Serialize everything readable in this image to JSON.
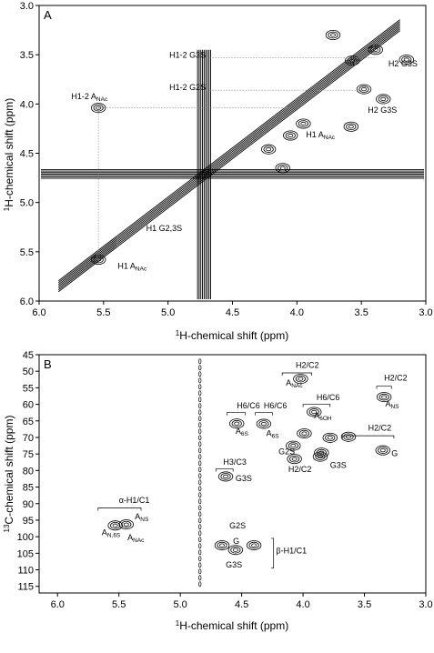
{
  "chart_data": [
    {
      "panel_label": "A",
      "type": "contour",
      "xlabel": "1H-chemical shift (ppm)",
      "xlabel_sup": "1",
      "xlabel_main": "H-chemical shift (ppm)",
      "ylabel_sup": "1",
      "ylabel_main": "H-chemical shift (ppm)",
      "xlim": [
        6.0,
        3.0
      ],
      "ylim": [
        3.0,
        6.0
      ],
      "x_ticks": [
        "6.0",
        "5.5",
        "5.0",
        "4.5",
        "4.0",
        "3.5",
        "3.0"
      ],
      "y_ticks": [
        "3.0",
        "3.5",
        "4.0",
        "4.5",
        "5.0",
        "5.5",
        "6.0"
      ],
      "x_tick_values": [
        6.0,
        5.5,
        5.0,
        4.5,
        4.0,
        3.5,
        3.0
      ],
      "y_tick_values": [
        3.0,
        3.5,
        4.0,
        4.5,
        5.0,
        5.5,
        6.0
      ],
      "annotations": [
        {
          "text": "H1-2 G3S",
          "x": 4.99,
          "y": 3.53
        },
        {
          "text": "H2 G3S",
          "x": 3.29,
          "y": 3.62
        },
        {
          "text": "H1-2 ANAc",
          "main": "H1-2 A",
          "sub": "NAc",
          "x": 5.75,
          "y": 3.95
        },
        {
          "text": "H1-2 G2S",
          "x": 4.99,
          "y": 3.86
        },
        {
          "text": "H2 G3S",
          "x": 3.45,
          "y": 4.09
        },
        {
          "text": "H1 ANAc",
          "main": "H1 A",
          "sub": "NAc",
          "x": 3.93,
          "y": 4.34
        },
        {
          "text": "H1 G2,3S",
          "x": 5.17,
          "y": 5.29
        },
        {
          "text": "H1 ANAc",
          "main": "H1 A",
          "sub": "NAc",
          "x": 5.39,
          "y": 5.67
        }
      ],
      "peaks": [
        {
          "x": 5.54,
          "y": 4.04
        },
        {
          "x": 5.54,
          "y": 5.58
        },
        {
          "x": 3.57,
          "y": 3.56
        },
        {
          "x": 3.39,
          "y": 3.45
        },
        {
          "x": 3.48,
          "y": 3.85
        },
        {
          "x": 3.33,
          "y": 3.95
        },
        {
          "x": 3.58,
          "y": 4.23
        },
        {
          "x": 4.05,
          "y": 4.32
        },
        {
          "x": 3.95,
          "y": 4.2
        },
        {
          "x": 4.22,
          "y": 4.46
        },
        {
          "x": 4.11,
          "y": 4.65
        },
        {
          "x": 3.72,
          "y": 3.3
        },
        {
          "x": 3.15,
          "y": 3.55
        }
      ]
    },
    {
      "panel_label": "B",
      "type": "contour",
      "xlabel": "1H-chemical shift (ppm)",
      "xlabel_sup": "1",
      "xlabel_main": "H-chemical shift (ppm)",
      "ylabel_sup": "13",
      "ylabel_main": "C-chemical shift (ppm)",
      "xlim": [
        6.15,
        3.0
      ],
      "ylim": [
        45,
        117
      ],
      "x_ticks": [
        "6.0",
        "5.5",
        "5.0",
        "4.5",
        "4.0",
        "3.5",
        "3.0"
      ],
      "y_ticks": [
        "45",
        "50",
        "55",
        "60",
        "65",
        "70",
        "75",
        "80",
        "85",
        "90",
        "95",
        "100",
        "105",
        "110",
        "115"
      ],
      "x_tick_values": [
        6.0,
        5.5,
        5.0,
        4.5,
        4.0,
        3.5,
        3.0
      ],
      "y_tick_values": [
        45,
        50,
        55,
        60,
        65,
        70,
        75,
        80,
        85,
        90,
        95,
        100,
        105,
        110,
        115
      ],
      "annotations": [
        {
          "text": "H2/C2",
          "x": 4.06,
          "y": 49.0
        },
        {
          "text": "ANAc",
          "main": "A",
          "sub": "NAc",
          "x": 4.14,
          "y": 54.3
        },
        {
          "text": "H2/C2",
          "x": 3.34,
          "y": 52.8
        },
        {
          "text": "H6/C6",
          "x": 3.89,
          "y": 58.7
        },
        {
          "text": "ANS",
          "main": "A",
          "sub": "NS",
          "x": 3.33,
          "y": 60.6
        },
        {
          "text": "H6/C6",
          "x": 4.54,
          "y": 61.2
        },
        {
          "text": "H6/C6",
          "x": 4.32,
          "y": 61.2
        },
        {
          "text": "A6OH",
          "main": "A",
          "sub": "6OH",
          "x": 3.91,
          "y": 64.3
        },
        {
          "text": "H2/C2",
          "x": 3.47,
          "y": 67.9
        },
        {
          "text": "A6S",
          "main": "A",
          "sub": "6S",
          "x": 4.55,
          "y": 68.9
        },
        {
          "text": "A6S",
          "main": "A",
          "sub": "6S",
          "x": 4.3,
          "y": 69.6
        },
        {
          "text": "G2S",
          "x": 4.2,
          "y": 75.1
        },
        {
          "text": "G",
          "x": 3.28,
          "y": 75.6
        },
        {
          "text": "H2/C2",
          "x": 4.12,
          "y": 80.4
        },
        {
          "text": "G3S",
          "x": 3.78,
          "y": 79.2
        },
        {
          "text": "H3/C3",
          "x": 4.65,
          "y": 78.2
        },
        {
          "text": "G3S",
          "x": 4.55,
          "y": 83.2
        },
        {
          "text": "α-H1/C1",
          "x": 5.5,
          "y": 89.8
        },
        {
          "text": "ANS",
          "main": "A",
          "sub": "NS",
          "x": 5.37,
          "y": 94.7
        },
        {
          "text": "AN,6S",
          "main": "A",
          "sub": "N,6S",
          "x": 5.64,
          "y": 99.6
        },
        {
          "text": "ANAc",
          "main": "A",
          "sub": "NAc",
          "x": 5.43,
          "y": 101.0
        },
        {
          "text": "G2S",
          "x": 4.6,
          "y": 97.5
        },
        {
          "text": "G",
          "x": 4.57,
          "y": 102.2
        },
        {
          "text": "β-H1/C1",
          "x": 4.22,
          "y": 105.0
        },
        {
          "text": "G3S",
          "x": 4.63,
          "y": 109.3
        }
      ],
      "peaks": [
        {
          "x": 4.02,
          "y": 52.3
        },
        {
          "x": 3.34,
          "y": 57.8
        },
        {
          "x": 3.91,
          "y": 62.3
        },
        {
          "x": 4.54,
          "y": 65.8
        },
        {
          "x": 4.32,
          "y": 65.9
        },
        {
          "x": 3.99,
          "y": 68.8
        },
        {
          "x": 3.78,
          "y": 70.1
        },
        {
          "x": 3.63,
          "y": 69.8
        },
        {
          "x": 4.08,
          "y": 72.5
        },
        {
          "x": 3.85,
          "y": 74.6
        },
        {
          "x": 3.35,
          "y": 73.9
        },
        {
          "x": 4.07,
          "y": 76.5
        },
        {
          "x": 3.86,
          "y": 75.8
        },
        {
          "x": 4.63,
          "y": 81.8
        },
        {
          "x": 5.53,
          "y": 96.6
        },
        {
          "x": 5.44,
          "y": 96.3
        },
        {
          "x": 4.66,
          "y": 102.6
        },
        {
          "x": 4.4,
          "y": 102.6
        },
        {
          "x": 4.55,
          "y": 104.0
        }
      ]
    }
  ]
}
